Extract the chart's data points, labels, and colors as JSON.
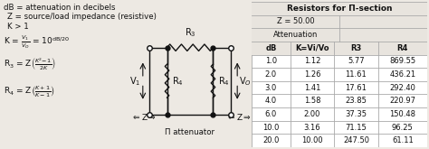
{
  "circuit_label": "Π attenuator",
  "table_title": "Resistors for Π-section",
  "table_z": "Z = 50.00",
  "table_col_header_attn": "Attenuation",
  "table_headers": [
    "dB",
    "K=Vi/Vo",
    "R3",
    "R4"
  ],
  "table_data": [
    [
      1.0,
      1.12,
      5.77,
      869.55
    ],
    [
      2.0,
      1.26,
      11.61,
      436.21
    ],
    [
      3.0,
      1.41,
      17.61,
      292.4
    ],
    [
      4.0,
      1.58,
      23.85,
      220.97
    ],
    [
      6.0,
      2.0,
      37.35,
      150.48
    ],
    [
      10.0,
      3.16,
      71.15,
      96.25
    ],
    [
      20.0,
      10.0,
      247.5,
      61.11
    ]
  ],
  "bg_color": "#ede9e3",
  "table_bg": "#ffffff",
  "table_header_bg": "#e8e4de",
  "table_border": "#aaaaaa",
  "text_color": "#111111",
  "font_size_main": 6.2,
  "font_size_table": 6.0,
  "font_size_formula": 6.5
}
